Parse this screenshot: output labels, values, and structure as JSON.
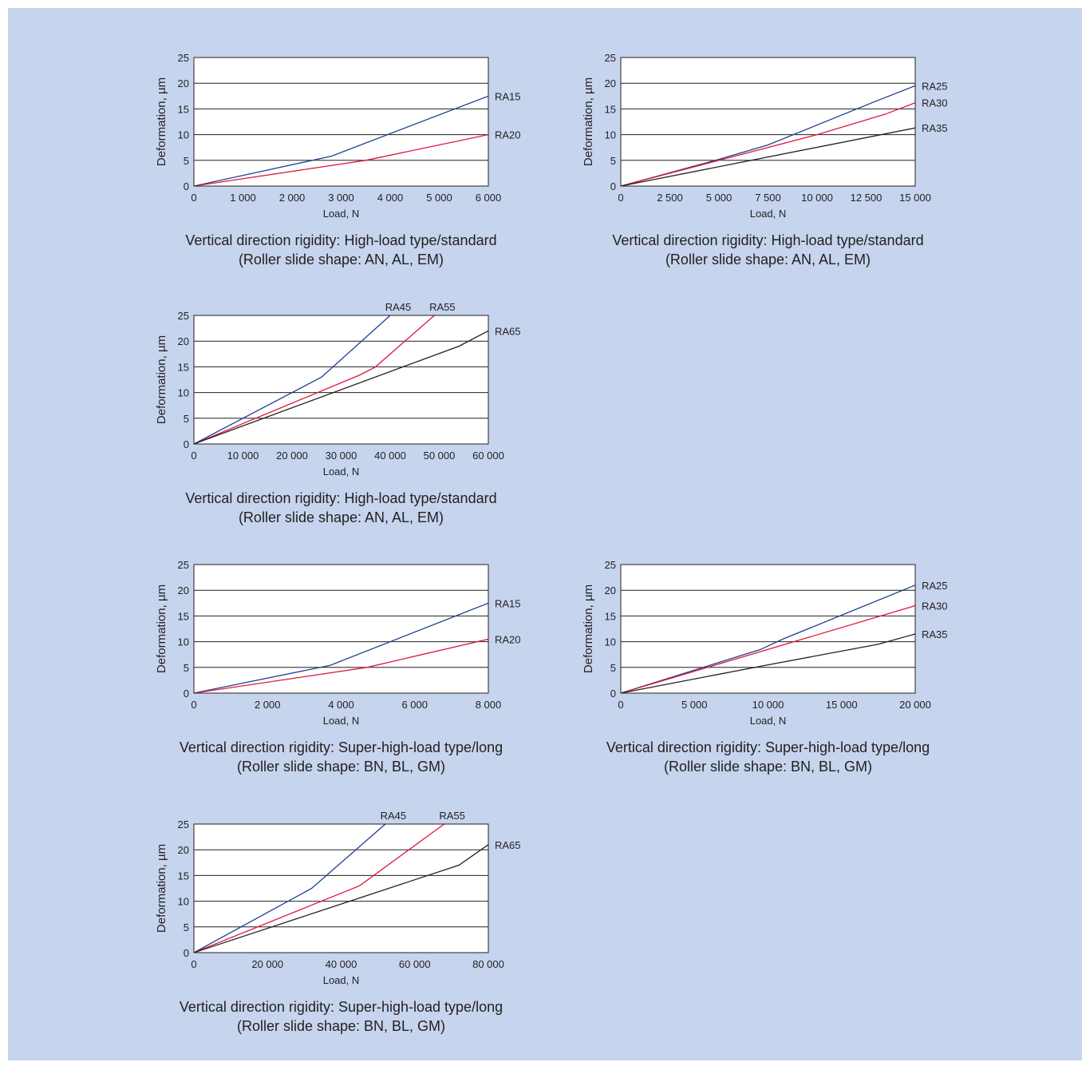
{
  "colors": {
    "background": "#c6d4ed",
    "plot_background": "#ffffff",
    "blue": "#1f3f8f",
    "red": "#e1163c",
    "black": "#231f20"
  },
  "chart_data": [
    {
      "type": "line",
      "ylabel": "Deformation, µm",
      "xlabel": "Load, N",
      "xlim": [
        0,
        6000
      ],
      "ylim": [
        0,
        25
      ],
      "xticks": [
        0,
        1000,
        2000,
        3000,
        4000,
        5000,
        6000
      ],
      "xtick_labels": [
        "0",
        "1 000",
        "2 000",
        "3 000",
        "4 000",
        "5 000",
        "6 000"
      ],
      "yticks": [
        0,
        5,
        10,
        15,
        20,
        25
      ],
      "ytick_labels": [
        "0",
        "5",
        "10",
        "15",
        "20",
        "25"
      ],
      "grid": "horizontal",
      "caption": [
        "Vertical direction rigidity: High-load type/standard",
        "(Roller slide shape: AN, AL, EM)"
      ],
      "series": [
        {
          "name": "RA15",
          "color": "blue",
          "label_pos": "right",
          "x": [
            0,
            2800,
            6000
          ],
          "y": [
            0,
            5.8,
            17.5
          ]
        },
        {
          "name": "RA20",
          "color": "red",
          "label_pos": "right",
          "x": [
            0,
            3500,
            6000
          ],
          "y": [
            0,
            5,
            10
          ]
        }
      ]
    },
    {
      "type": "line",
      "ylabel": "Deformation, µm",
      "xlabel": "Load, N",
      "xlim": [
        0,
        15000
      ],
      "ylim": [
        0,
        25
      ],
      "xticks": [
        0,
        2500,
        5000,
        7500,
        10000,
        12500,
        15000
      ],
      "xtick_labels": [
        "0",
        "2 500",
        "5 000",
        "7 500",
        "10 000",
        "12 500",
        "15 000"
      ],
      "yticks": [
        0,
        5,
        10,
        15,
        20,
        25
      ],
      "ytick_labels": [
        "0",
        "5",
        "10",
        "15",
        "20",
        "25"
      ],
      "grid": "horizontal",
      "caption": [
        "Vertical direction rigidity: High-load type/standard",
        "(Roller slide shape: AN, AL, EM)"
      ],
      "series": [
        {
          "name": "RA25",
          "color": "blue",
          "label_pos": "right",
          "x": [
            0,
            5000,
            7500,
            13000,
            15000
          ],
          "y": [
            0,
            5.2,
            8,
            16.5,
            19.5
          ]
        },
        {
          "name": "RA30",
          "color": "red",
          "label_pos": "right",
          "x": [
            0,
            5000,
            10000,
            13500,
            15000
          ],
          "y": [
            0,
            5,
            10,
            14,
            16.2
          ]
        },
        {
          "name": "RA35",
          "color": "black",
          "label_pos": "right",
          "x": [
            0,
            15000
          ],
          "y": [
            0,
            11.3
          ]
        }
      ]
    },
    {
      "type": "line",
      "ylabel": "Deformation, µm",
      "xlabel": "Load, N",
      "xlim": [
        0,
        60000
      ],
      "ylim": [
        0,
        25
      ],
      "xticks": [
        0,
        10000,
        20000,
        30000,
        40000,
        50000,
        60000
      ],
      "xtick_labels": [
        "0",
        "10 000",
        "20 000",
        "30 000",
        "40 000",
        "50 000",
        "60 000"
      ],
      "yticks": [
        0,
        5,
        10,
        15,
        20,
        25
      ],
      "ytick_labels": [
        "0",
        "5",
        "10",
        "15",
        "20",
        "25"
      ],
      "grid": "horizontal",
      "caption": [
        "Vertical direction rigidity: High-load type/standard",
        "(Roller slide shape: AN, AL, EM)"
      ],
      "series": [
        {
          "name": "RA45",
          "color": "blue",
          "label_pos": "top",
          "x": [
            0,
            26000,
            40000
          ],
          "y": [
            0,
            13,
            25
          ]
        },
        {
          "name": "RA55",
          "color": "red",
          "label_pos": "top",
          "x": [
            0,
            34000,
            37000,
            49000
          ],
          "y": [
            0,
            13.5,
            15,
            25
          ]
        },
        {
          "name": "RA65",
          "color": "black",
          "label_pos": "right",
          "x": [
            0,
            54000,
            60000
          ],
          "y": [
            0,
            19,
            22
          ]
        }
      ]
    },
    {
      "type": "line",
      "ylabel": "Deformation, µm",
      "xlabel": "Load, N",
      "xlim": [
        0,
        8000
      ],
      "ylim": [
        0,
        25
      ],
      "xticks": [
        0,
        2000,
        4000,
        6000,
        8000
      ],
      "xtick_labels": [
        "0",
        "2 000",
        "4 000",
        "6 000",
        "8 000"
      ],
      "yticks": [
        0,
        5,
        10,
        15,
        20,
        25
      ],
      "ytick_labels": [
        "0",
        "5",
        "10",
        "15",
        "20",
        "25"
      ],
      "grid": "horizontal",
      "caption": [
        "Vertical direction rigidity: Super-high-load type/long",
        "(Roller slide shape: BN, BL, GM)"
      ],
      "series": [
        {
          "name": "RA15",
          "color": "blue",
          "label_pos": "right",
          "x": [
            0,
            3700,
            8000
          ],
          "y": [
            0,
            5.4,
            17.5
          ]
        },
        {
          "name": "RA20",
          "color": "red",
          "label_pos": "right",
          "x": [
            0,
            4700,
            8000
          ],
          "y": [
            0,
            5,
            10.5
          ]
        }
      ]
    },
    {
      "type": "line",
      "ylabel": "Deformation, µm",
      "xlabel": "Load, N",
      "xlim": [
        0,
        20000
      ],
      "ylim": [
        0,
        25
      ],
      "xticks": [
        0,
        5000,
        10000,
        15000,
        20000
      ],
      "xtick_labels": [
        "0",
        "5 000",
        "10 000",
        "15 000",
        "20 000"
      ],
      "yticks": [
        0,
        5,
        10,
        15,
        20,
        25
      ],
      "ytick_labels": [
        "0",
        "5",
        "10",
        "15",
        "20",
        "25"
      ],
      "grid": "horizontal",
      "caption": [
        "Vertical direction rigidity: Super-high-load type/long",
        "(Roller slide shape: BN, BL, GM)"
      ],
      "series": [
        {
          "name": "RA25",
          "color": "blue",
          "label_pos": "right",
          "x": [
            0,
            9500,
            11000,
            20000
          ],
          "y": [
            0,
            8.5,
            10.5,
            21
          ]
        },
        {
          "name": "RA30",
          "color": "red",
          "label_pos": "right",
          "x": [
            0,
            20000
          ],
          "y": [
            0,
            17
          ]
        },
        {
          "name": "RA35",
          "color": "black",
          "label_pos": "right",
          "x": [
            0,
            10000,
            17500,
            20000
          ],
          "y": [
            0,
            5.5,
            9.5,
            11.5
          ]
        }
      ]
    },
    {
      "type": "line",
      "ylabel": "Deformation, µm",
      "xlabel": "Load, N",
      "xlim": [
        0,
        80000
      ],
      "ylim": [
        0,
        25
      ],
      "xticks": [
        0,
        20000,
        40000,
        60000,
        80000
      ],
      "xtick_labels": [
        "0",
        "20 000",
        "40 000",
        "60 000",
        "80 000"
      ],
      "yticks": [
        0,
        5,
        10,
        15,
        20,
        25
      ],
      "ytick_labels": [
        "0",
        "5",
        "10",
        "15",
        "20",
        "25"
      ],
      "grid": "horizontal",
      "caption": [
        "Vertical direction rigidity: Super-high-load type/long",
        "(Roller slide shape: BN, BL, GM)"
      ],
      "series": [
        {
          "name": "RA45",
          "color": "blue",
          "label_pos": "top",
          "x": [
            0,
            32000,
            52000
          ],
          "y": [
            0,
            12.5,
            25
          ]
        },
        {
          "name": "RA55",
          "color": "red",
          "label_pos": "top",
          "x": [
            0,
            45000,
            68000
          ],
          "y": [
            0,
            13,
            25
          ]
        },
        {
          "name": "RA65",
          "color": "black",
          "label_pos": "right",
          "x": [
            0,
            72000,
            80000
          ],
          "y": [
            0,
            17,
            21
          ]
        }
      ]
    }
  ]
}
